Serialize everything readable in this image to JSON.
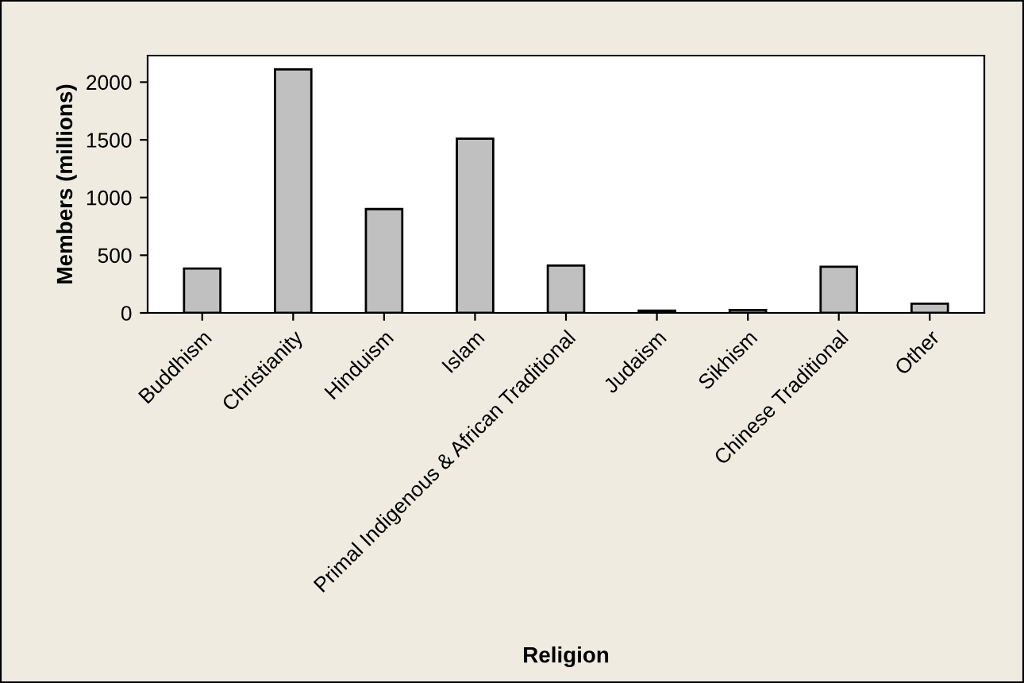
{
  "chart_data": {
    "type": "bar",
    "xlabel": "Religion",
    "ylabel": "Members (millions)",
    "categories": [
      "Buddhism",
      "Christianity",
      "Hinduism",
      "Islam",
      "Primal Indigenous & African Traditional",
      "Judaism",
      "Sikhism",
      "Chinese Traditional",
      "Other"
    ],
    "values": [
      385,
      2110,
      900,
      1510,
      410,
      20,
      25,
      400,
      80
    ],
    "color": "#c0c0c0",
    "ylim": [
      0,
      2230
    ],
    "yticks": [
      0,
      500,
      1000,
      1500,
      2000
    ],
    "grid": false,
    "legend": false
  }
}
